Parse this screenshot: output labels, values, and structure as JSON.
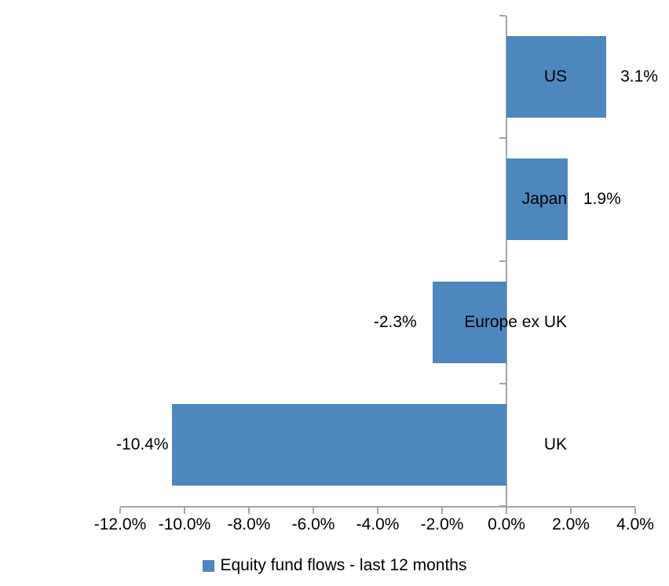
{
  "chart_data": {
    "type": "bar",
    "orientation": "horizontal",
    "title": "",
    "xlabel": "",
    "ylabel": "",
    "categories": [
      "US",
      "Japan",
      "Europe ex UK",
      "UK"
    ],
    "series": [
      {
        "name": "Equity fund flows - last 12 months",
        "values": [
          3.1,
          1.9,
          -2.3,
          -10.4
        ],
        "data_labels": [
          "3.1%",
          "1.9%",
          "-2.3%",
          "-10.4%"
        ]
      }
    ],
    "xlim": [
      -12.0,
      4.0
    ],
    "x_tick_values": [
      -12,
      -10,
      -8,
      -6,
      -4,
      -2,
      0,
      2,
      4
    ],
    "x_tick_labels": [
      "-12.0%",
      "-10.0%",
      "-8.0%",
      "-6.0%",
      "-4.0%",
      "-2.0%",
      "0.0%",
      "2.0%",
      "4.0%"
    ],
    "grid": false,
    "legend": {
      "position": "bottom",
      "label": "Equity fund flows - last 12 months"
    },
    "colors": {
      "bar": "#4e87be",
      "axis": "#a6a6a6",
      "text": "#000000",
      "background": "#ffffff"
    }
  }
}
